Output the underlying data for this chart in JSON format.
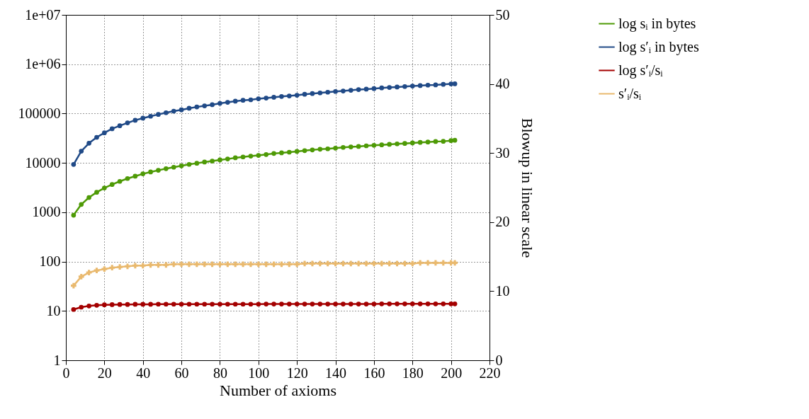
{
  "chart_data": {
    "type": "line",
    "xlabel": "Number of axioms",
    "y2label": "Blowup in linear scale",
    "x": [
      4,
      8,
      12,
      16,
      20,
      24,
      28,
      32,
      36,
      40,
      44,
      48,
      52,
      56,
      60,
      64,
      68,
      72,
      76,
      80,
      84,
      88,
      92,
      96,
      100,
      104,
      108,
      112,
      116,
      120,
      124,
      128,
      132,
      136,
      140,
      144,
      148,
      152,
      156,
      160,
      164,
      168,
      172,
      176,
      180,
      184,
      188,
      192,
      196,
      200,
      202
    ],
    "xlim": [
      0,
      220
    ],
    "xticks": [
      0,
      20,
      40,
      60,
      80,
      100,
      120,
      140,
      160,
      180,
      200,
      220
    ],
    "ylim": [
      1,
      10000000
    ],
    "yticks": [
      1,
      10,
      100,
      1000,
      10000,
      100000,
      {
        "value": 1000000,
        "label": "1e+06"
      },
      {
        "value": 10000000,
        "label": "1e+07"
      }
    ],
    "log": "y",
    "y2lim": [
      0,
      50
    ],
    "y2ticks": [
      0,
      10,
      20,
      30,
      40,
      50
    ],
    "grid": true,
    "legend": "top right",
    "line_style": "solid",
    "series": [
      {
        "name": "log sᵢ in bytes",
        "color": "#4e9a06",
        "marker": "circle",
        "values": [
          870,
          1440,
          1990,
          2540,
          3100,
          3650,
          4220,
          4820,
          5370,
          6000,
          6550,
          7080,
          7640,
          8170,
          8720,
          9330,
          9840,
          10400,
          10900,
          11500,
          12000,
          12700,
          13200,
          13700,
          14200,
          14800,
          15500,
          16000,
          16500,
          17100,
          17700,
          18300,
          18900,
          19300,
          19900,
          20600,
          21100,
          21500,
          22200,
          22700,
          23200,
          23800,
          24300,
          24800,
          25400,
          26000,
          26500,
          27100,
          27400,
          28300,
          28700
        ]
      },
      {
        "name": "log s′ᵢ in bytes",
        "color": "#204a87",
        "marker": "circle",
        "values": [
          9300,
          17300,
          25100,
          33000,
          40700,
          49200,
          56600,
          64700,
          73100,
          80700,
          88200,
          96100,
          104000,
          112000,
          119000,
          128000,
          136000,
          143000,
          151000,
          161000,
          169000,
          178000,
          186000,
          190000,
          199000,
          206000,
          214000,
          222000,
          227000,
          235000,
          246000,
          254000,
          262000,
          271000,
          280000,
          286000,
          296000,
          306000,
          312000,
          320000,
          331000,
          338000,
          345000,
          353000,
          361000,
          369000,
          377000,
          381000,
          390000,
          398000,
          400000
        ]
      },
      {
        "name": "log s′ᵢ/sᵢ",
        "color": "#a40000",
        "marker": "circle",
        "values": [
          10.7,
          11.9,
          12.6,
          13.0,
          13.3,
          13.4,
          13.5,
          13.5,
          13.6,
          13.6,
          13.6,
          13.7,
          13.7,
          13.7,
          13.7,
          13.7,
          13.7,
          13.7,
          13.7,
          13.7,
          13.7,
          13.7,
          13.7,
          13.7,
          13.7,
          13.8,
          13.8,
          13.8,
          13.8,
          13.8,
          13.8,
          13.8,
          13.8,
          13.8,
          13.8,
          13.8,
          13.8,
          13.8,
          13.8,
          13.8,
          13.9,
          13.9,
          13.9,
          13.9,
          13.9,
          13.9,
          13.9,
          13.9,
          13.9,
          13.9,
          13.9
        ]
      },
      {
        "name": "s′ᵢ/sᵢ",
        "color": "#e9b96e",
        "marker": "cross",
        "axis": "y2",
        "values": [
          10.8,
          12.1,
          12.7,
          13.0,
          13.2,
          13.4,
          13.5,
          13.6,
          13.7,
          13.7,
          13.8,
          13.8,
          13.8,
          13.9,
          13.9,
          13.9,
          13.9,
          13.9,
          13.9,
          13.9,
          13.9,
          13.9,
          13.9,
          13.9,
          13.9,
          13.9,
          13.9,
          13.9,
          13.9,
          13.9,
          14.0,
          14.0,
          14.0,
          14.0,
          14.0,
          14.0,
          14.0,
          14.0,
          14.0,
          14.0,
          14.0,
          14.0,
          14.0,
          14.0,
          14.0,
          14.1,
          14.1,
          14.1,
          14.1,
          14.1,
          14.1
        ]
      }
    ]
  }
}
